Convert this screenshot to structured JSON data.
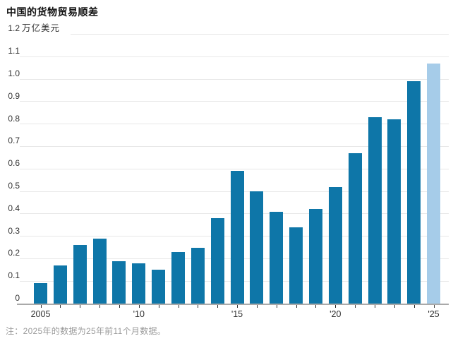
{
  "header": {
    "title": "中国的货物贸易顺差"
  },
  "chart_data": {
    "type": "bar",
    "title": "中国的货物贸易顺差",
    "unit_label": "万亿美元",
    "categories": [
      "2005",
      "2006",
      "2007",
      "2008",
      "2009",
      "2010",
      "2011",
      "2012",
      "2013",
      "2014",
      "2015",
      "2016",
      "2017",
      "2018",
      "2019",
      "2020",
      "2021",
      "2022",
      "2023",
      "2024",
      "2025"
    ],
    "values": [
      0.09,
      0.17,
      0.26,
      0.29,
      0.19,
      0.18,
      0.15,
      0.23,
      0.25,
      0.38,
      0.59,
      0.5,
      0.41,
      0.34,
      0.42,
      0.52,
      0.67,
      0.83,
      0.82,
      0.99,
      1.07
    ],
    "highlight_index": 20,
    "ylim": [
      0,
      1.2
    ],
    "y_ticks": [
      0,
      0.1,
      0.2,
      0.3,
      0.4,
      0.5,
      0.6,
      0.7,
      0.8,
      0.9,
      1.0,
      1.1,
      1.2
    ],
    "y_tick_labels": [
      "0",
      "0.1",
      "0.2",
      "0.3",
      "0.4",
      "0.5",
      "0.6",
      "0.7",
      "0.8",
      "0.9",
      "1.0",
      "1.1",
      "1.2"
    ],
    "x_axis_ticks": [
      {
        "index": 0,
        "label": "2005"
      },
      {
        "index": 5,
        "label": "'10"
      },
      {
        "index": 10,
        "label": "'15"
      },
      {
        "index": 15,
        "label": "'20"
      },
      {
        "index": 20,
        "label": "'25"
      }
    ],
    "grid": true,
    "legend": false
  },
  "footnote": {
    "text": "注：2025年的数据为25年前11个月数据。"
  },
  "colors": {
    "bar": "#0e76a8",
    "bar_highlight": "#a6cce9",
    "gridline": "#e8e8e8",
    "axis_line": "#a9a9a9",
    "tick": "#333333",
    "title_text": "#111111",
    "axis_text": "#333333",
    "footnote_text": "#9a9a9a",
    "background": "#ffffff"
  }
}
